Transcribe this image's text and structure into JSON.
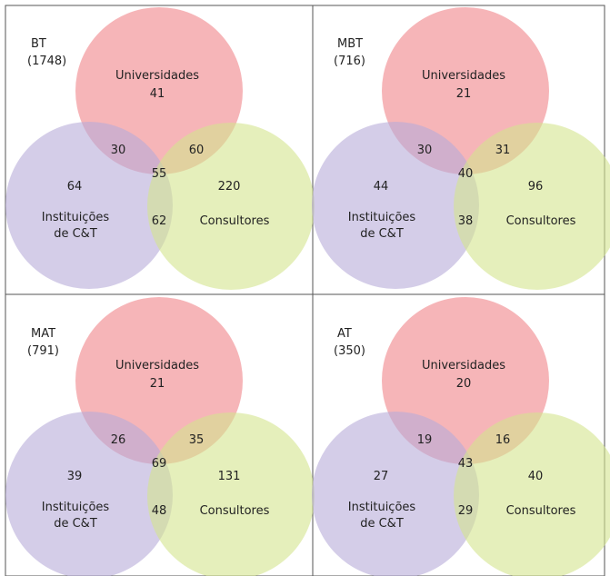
{
  "colors": {
    "universidades": "#f4a3a6",
    "instituicoes": "#b7acd8",
    "consultores": "#d4e48e",
    "border": "#555555"
  },
  "set_names": {
    "universidades": "Universidades",
    "instituicoes_line1": "Instituições",
    "instituicoes_line2": "de C&T",
    "consultores": "Consultores"
  },
  "panels": [
    {
      "label": "BT",
      "total": "(1748)",
      "values": {
        "u": "41",
        "i": "64",
        "c": "220",
        "ui": "30",
        "uc": "60",
        "ic": "62",
        "uic": "55"
      }
    },
    {
      "label": "MBT",
      "total": "(716)",
      "values": {
        "u": "21",
        "i": "44",
        "c": "96",
        "ui": "30",
        "uc": "31",
        "ic": "38",
        "uic": "40"
      }
    },
    {
      "label": "MAT",
      "total": "(791)",
      "values": {
        "u": "21",
        "i": "39",
        "c": "131",
        "ui": "26",
        "uc": "35",
        "ic": "48",
        "uic": "69"
      }
    },
    {
      "label": "AT",
      "total": "(350)",
      "values": {
        "u": "20",
        "i": "27",
        "c": "40",
        "ui": "19",
        "uc": "16",
        "ic": "29",
        "uic": "43"
      }
    }
  ]
}
